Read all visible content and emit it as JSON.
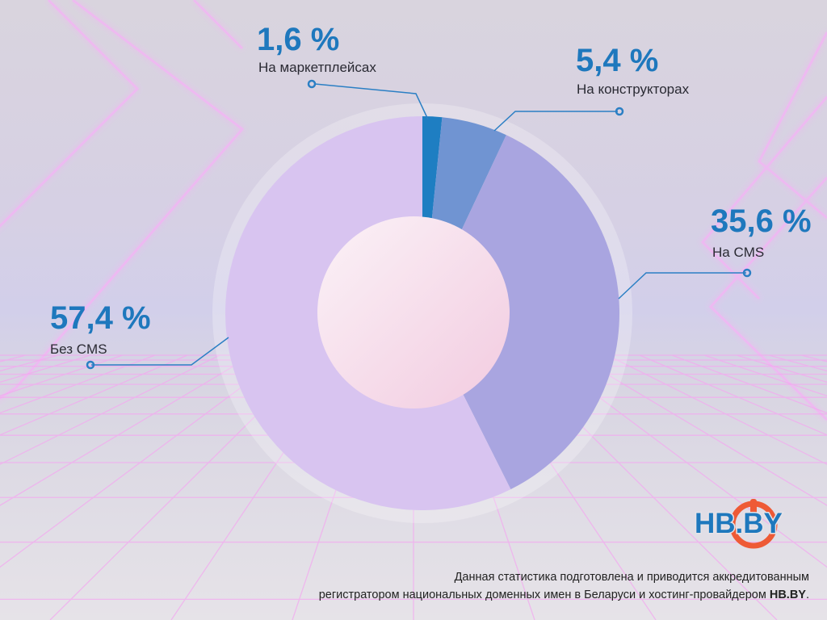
{
  "chart_data": {
    "type": "pie",
    "slices": [
      {
        "label": "На маркетплейсах",
        "value": 1.6,
        "display": "1,6 %",
        "color": "#1e7ec2"
      },
      {
        "label": "На конструкторах",
        "value": 5.4,
        "display": "5,4 %",
        "color": "#7094d2"
      },
      {
        "label": "На CMS",
        "value": 35.6,
        "display": "35,6 %",
        "color": "#a9a5e0"
      },
      {
        "label": "Без CMS",
        "value": 57.4,
        "display": "57,4 %",
        "color": "#d8c4f0"
      }
    ],
    "donut": true
  },
  "logo": {
    "text": "HB.BY",
    "color_text": "#1e78bd",
    "color_ring": "#ee5a36"
  },
  "footer": {
    "line1": "Данная статистика подготовлена и приводится аккредитованным",
    "line2": "регистратором национальных доменных имен в Беларуси и хостинг-провайдером ",
    "brand": "HB.BY",
    "end": "."
  },
  "colors": {
    "accent": "#1e78bd",
    "leader": "#2b7fc4"
  }
}
